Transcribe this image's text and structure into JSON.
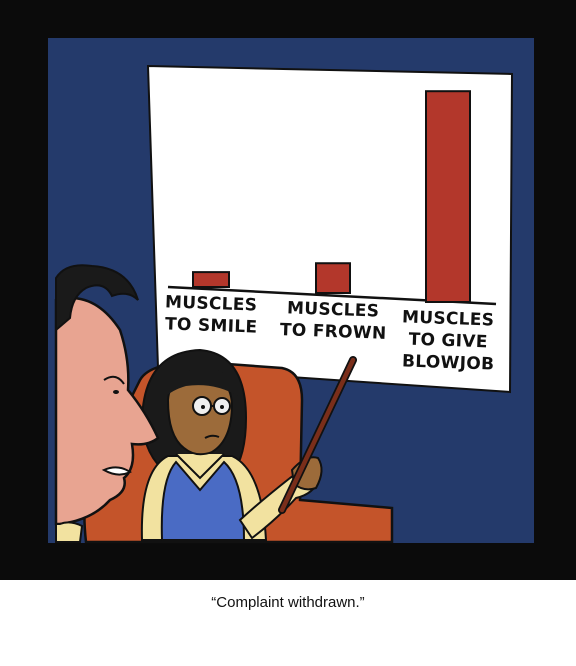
{
  "caption": "“Complaint withdrawn.”",
  "colors": {
    "frame": "#0b0b0b",
    "wall": "#243a6b",
    "bar": "#b3372b",
    "chair": "#c4542a",
    "screen": "#ffffff"
  },
  "chart_data": {
    "type": "bar",
    "categories": [
      [
        "MUSCLES",
        "TO SMILE"
      ],
      [
        "MUSCLES",
        "TO FROWN"
      ],
      [
        "MUSCLES",
        "TO GIVE",
        "BLOWJOB"
      ]
    ],
    "values": [
      6,
      12,
      85
    ],
    "ylim": [
      0,
      100
    ],
    "grid": false
  }
}
